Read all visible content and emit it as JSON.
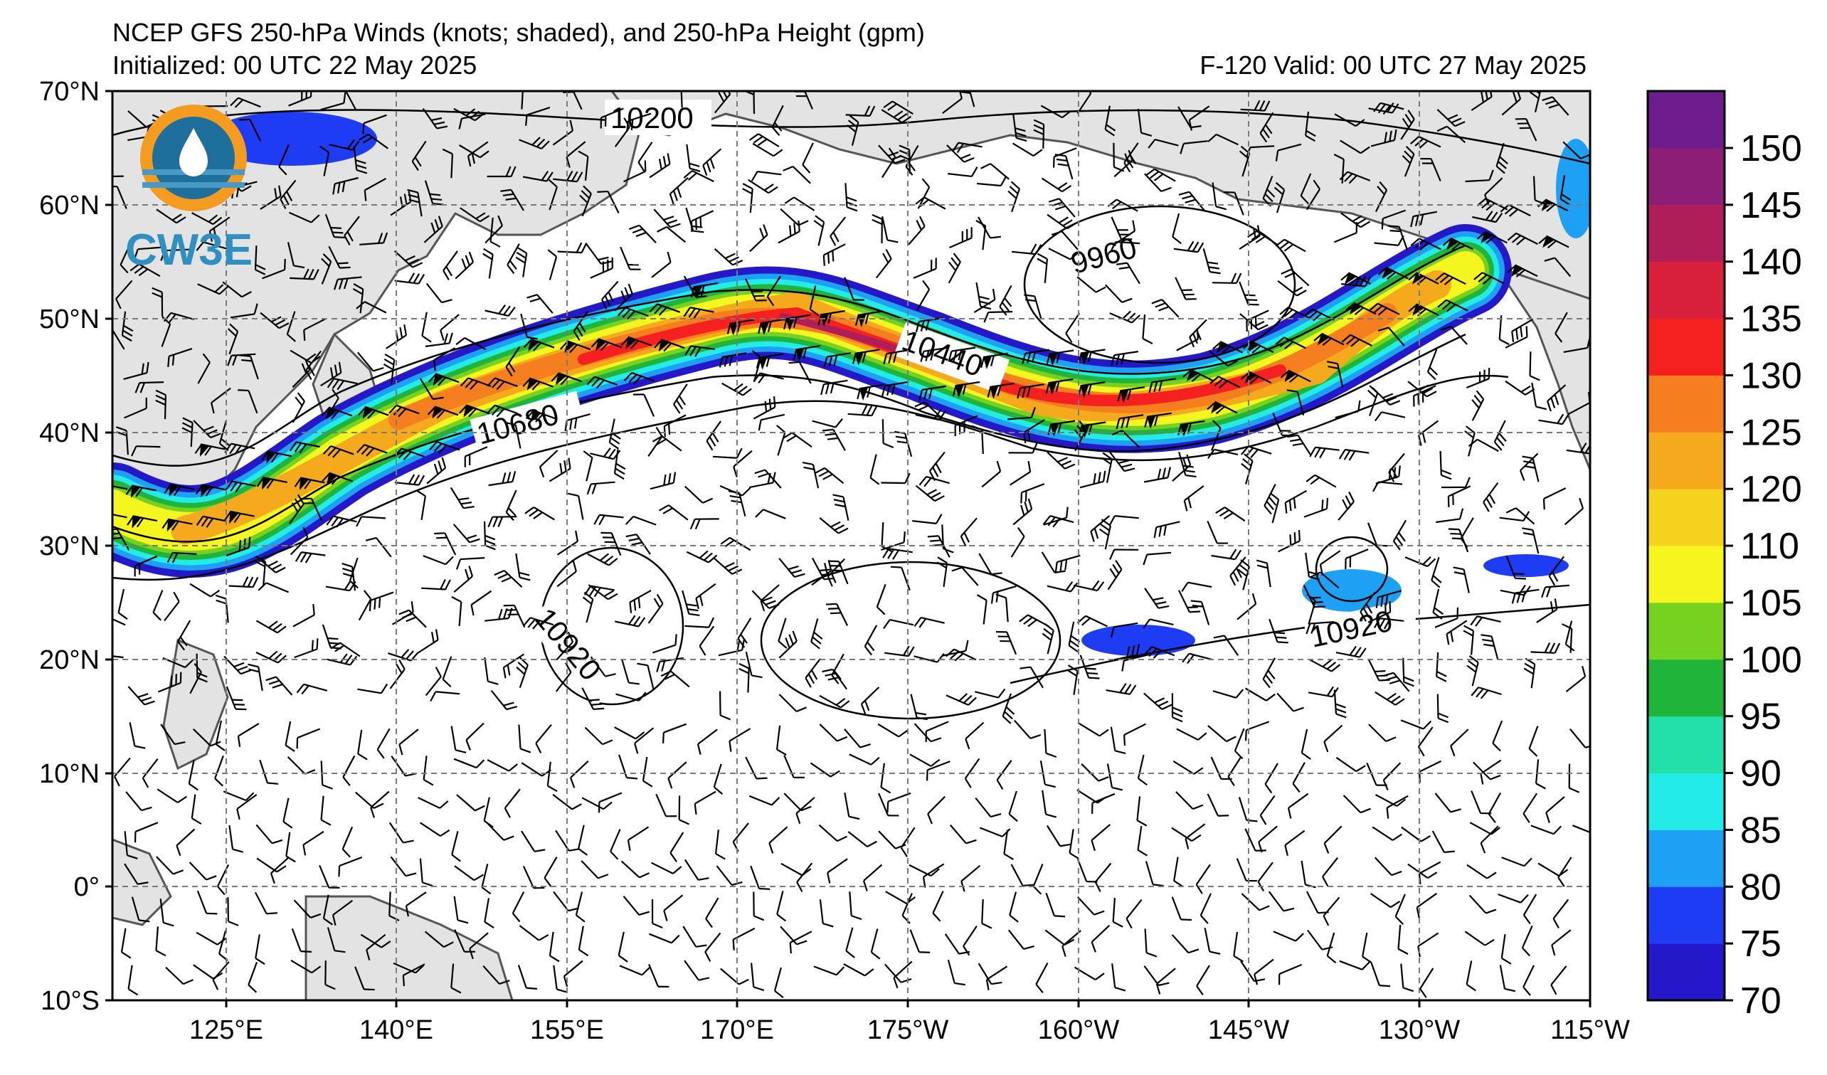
{
  "header": {
    "title": "NCEP GFS 250-hPa Winds (knots; shaded), and 250-hPa Height (gpm)",
    "initialized": "Initialized: 00 UTC 22 May 2025",
    "valid": "F-120  Valid: 00 UTC 27 May 2025"
  },
  "logo": {
    "text": "CW3E",
    "ring_color": "#f39c1f",
    "blue": "#1f6f9c"
  },
  "map": {
    "lat_labels": [
      "70°N",
      "60°N",
      "50°N",
      "40°N",
      "30°N",
      "20°N",
      "10°N",
      "0°",
      "10°S"
    ],
    "lon_labels": [
      "125°E",
      "140°E",
      "155°E",
      "170°E",
      "175°W",
      "160°W",
      "145°W",
      "130°W",
      "115°W"
    ],
    "contour_labels": [
      "10200",
      "9960",
      "10440",
      "10680",
      "10920",
      "10920"
    ]
  },
  "colorbar": {
    "ticks": [
      "150",
      "145",
      "140",
      "135",
      "130",
      "125",
      "120",
      "110",
      "105",
      "100",
      "95",
      "90",
      "85",
      "80",
      "75",
      "70"
    ],
    "colors": [
      "#2418c8",
      "#1f3cf5",
      "#1ea0f5",
      "#23ebe6",
      "#22e0a8",
      "#20b43a",
      "#76d121",
      "#f5f520",
      "#f5d21e",
      "#f5aa1e",
      "#f57e1e",
      "#f52020",
      "#d8203c",
      "#b01e5a",
      "#8c1e78",
      "#6e1e8c"
    ]
  }
}
